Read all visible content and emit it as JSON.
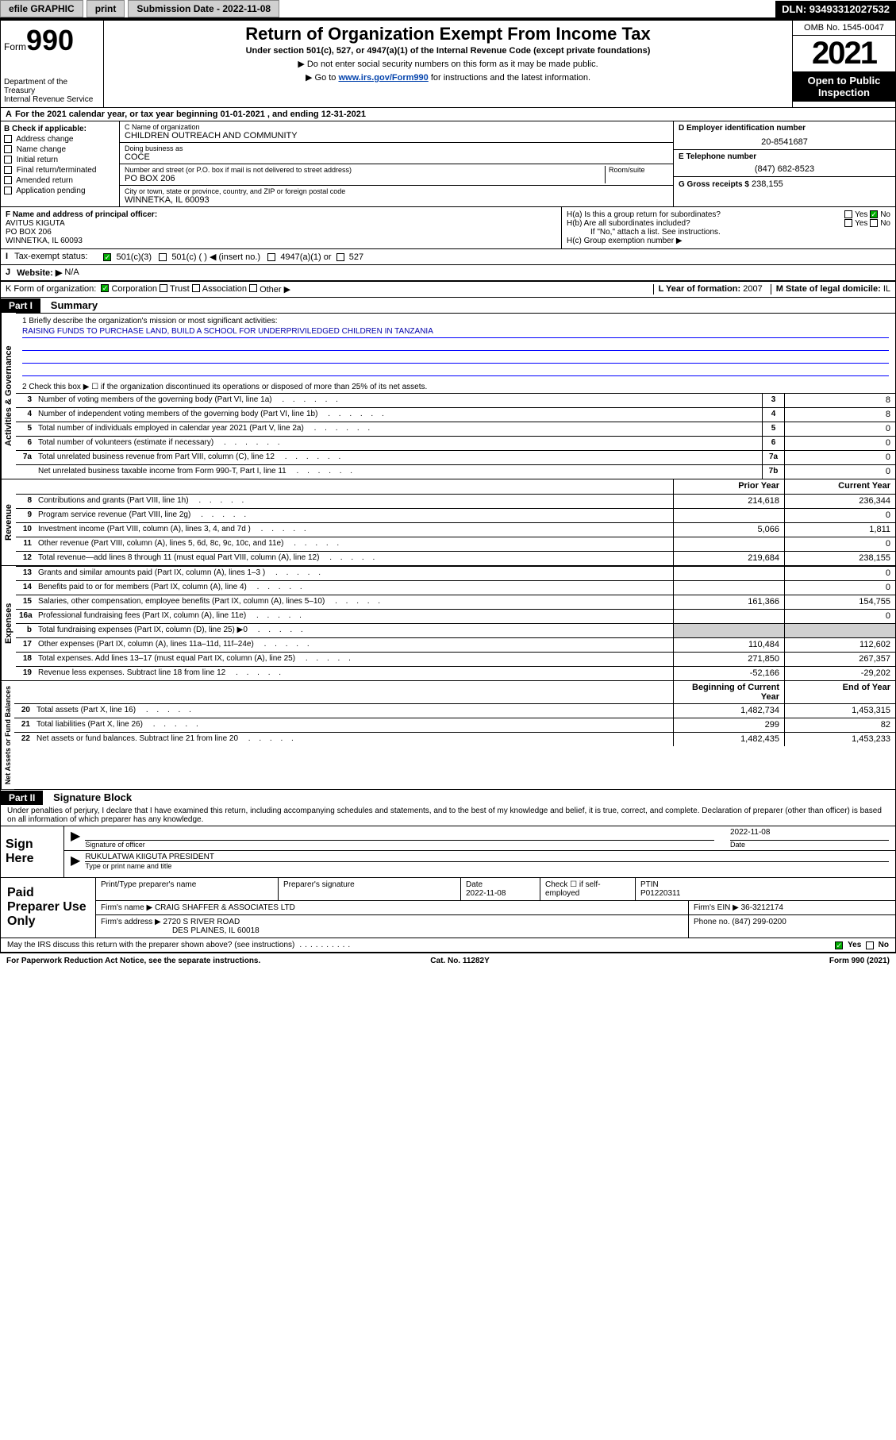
{
  "topbar": {
    "efile": "efile GRAPHIC",
    "print": "print",
    "subdate_label": "Submission Date - 2022-11-08",
    "dln": "DLN: 93493312027532"
  },
  "header": {
    "form": "Form",
    "formnum": "990",
    "dept": "Department of the Treasury\nInternal Revenue Service",
    "title": "Return of Organization Exempt From Income Tax",
    "sub": "Under section 501(c), 527, or 4947(a)(1) of the Internal Revenue Code (except private foundations)",
    "note1": "▶ Do not enter social security numbers on this form as it may be made public.",
    "note2_pre": "▶ Go to ",
    "note2_link": "www.irs.gov/Form990",
    "note2_post": " for instructions and the latest information.",
    "omb": "OMB No. 1545-0047",
    "year": "2021",
    "inspect": "Open to Public Inspection"
  },
  "yearline": "For the 2021 calendar year, or tax year beginning 01-01-2021   , and ending 12-31-2021",
  "sectB": {
    "hdr": "B Check if applicable:",
    "items": [
      "Address change",
      "Name change",
      "Initial return",
      "Final return/terminated",
      "Amended return",
      "Application pending"
    ]
  },
  "org": {
    "name_label": "C Name of organization",
    "name": "CHILDREN OUTREACH AND COMMUNITY",
    "dba_label": "Doing business as",
    "dba": "COCE",
    "addr_label": "Number and street (or P.O. box if mail is not delivered to street address)",
    "room_label": "Room/suite",
    "addr": "PO BOX 206",
    "city_label": "City or town, state or province, country, and ZIP or foreign postal code",
    "city": "WINNETKA, IL  60093"
  },
  "right": {
    "ein_label": "D Employer identification number",
    "ein": "20-8541687",
    "phone_label": "E Telephone number",
    "phone": "(847) 682-8523",
    "gross_label": "G Gross receipts $",
    "gross": "238,155"
  },
  "f": {
    "label": "F  Name and address of principal officer:",
    "name": "AVITUS KIGUTA",
    "addr1": "PO BOX 206",
    "addr2": "WINNETKA, IL  60093"
  },
  "h": {
    "a": "H(a)  Is this a group return for subordinates?",
    "b": "H(b)  Are all subordinates included?",
    "note": "If \"No,\" attach a list. See instructions.",
    "c": "H(c)  Group exemption number ▶",
    "yes": "Yes",
    "no": "No"
  },
  "i": {
    "label": "Tax-exempt status:",
    "opts": [
      "501(c)(3)",
      "501(c) (  ) ◀ (insert no.)",
      "4947(a)(1) or",
      "527"
    ]
  },
  "j": {
    "label": "Website: ▶",
    "val": "N/A"
  },
  "k": {
    "label": "K Form of organization:",
    "opts": [
      "Corporation",
      "Trust",
      "Association",
      "Other ▶"
    ]
  },
  "l": {
    "label": "L Year of formation:",
    "val": "2007"
  },
  "m": {
    "label": "M State of legal domicile:",
    "val": "IL"
  },
  "part1": {
    "num": "Part I",
    "title": "Summary"
  },
  "mission": {
    "label": "1   Briefly describe the organization's mission or most significant activities:",
    "text": "RAISING FUNDS TO PURCHASE LAND, BUILD A SCHOOL FOR UNDERPRIVILEDGED CHILDREN IN TANZANIA"
  },
  "line2": "2   Check this box ▶ ☐  if the organization discontinued its operations or disposed of more than 25% of its net assets.",
  "tabs": {
    "gov": "Activities & Governance",
    "rev": "Revenue",
    "exp": "Expenses",
    "net": "Net Assets or Fund Balances"
  },
  "gov_rows": [
    {
      "n": "3",
      "d": "Number of voting members of the governing body (Part VI, line 1a)",
      "box": "3",
      "v": "8"
    },
    {
      "n": "4",
      "d": "Number of independent voting members of the governing body (Part VI, line 1b)",
      "box": "4",
      "v": "8"
    },
    {
      "n": "5",
      "d": "Total number of individuals employed in calendar year 2021 (Part V, line 2a)",
      "box": "5",
      "v": "0"
    },
    {
      "n": "6",
      "d": "Total number of volunteers (estimate if necessary)",
      "box": "6",
      "v": "0"
    },
    {
      "n": "7a",
      "d": "Total unrelated business revenue from Part VIII, column (C), line 12",
      "box": "7a",
      "v": "0"
    },
    {
      "n": "",
      "d": "Net unrelated business taxable income from Form 990-T, Part I, line 11",
      "box": "7b",
      "v": "0"
    }
  ],
  "twocol_hdr": {
    "prior": "Prior Year",
    "curr": "Current Year"
  },
  "rev_rows": [
    {
      "n": "8",
      "d": "Contributions and grants (Part VIII, line 1h)",
      "p": "214,618",
      "c": "236,344"
    },
    {
      "n": "9",
      "d": "Program service revenue (Part VIII, line 2g)",
      "p": "",
      "c": "0"
    },
    {
      "n": "10",
      "d": "Investment income (Part VIII, column (A), lines 3, 4, and 7d )",
      "p": "5,066",
      "c": "1,811"
    },
    {
      "n": "11",
      "d": "Other revenue (Part VIII, column (A), lines 5, 6d, 8c, 9c, 10c, and 11e)",
      "p": "",
      "c": "0"
    },
    {
      "n": "12",
      "d": "Total revenue—add lines 8 through 11 (must equal Part VIII, column (A), line 12)",
      "p": "219,684",
      "c": "238,155"
    }
  ],
  "exp_rows": [
    {
      "n": "13",
      "d": "Grants and similar amounts paid (Part IX, column (A), lines 1–3 )",
      "p": "",
      "c": "0"
    },
    {
      "n": "14",
      "d": "Benefits paid to or for members (Part IX, column (A), line 4)",
      "p": "",
      "c": "0"
    },
    {
      "n": "15",
      "d": "Salaries, other compensation, employee benefits (Part IX, column (A), lines 5–10)",
      "p": "161,366",
      "c": "154,755"
    },
    {
      "n": "16a",
      "d": "Professional fundraising fees (Part IX, column (A), line 11e)",
      "p": "",
      "c": "0"
    },
    {
      "n": "b",
      "d": "Total fundraising expenses (Part IX, column (D), line 25) ▶0",
      "p": "shade",
      "c": "shade"
    },
    {
      "n": "17",
      "d": "Other expenses (Part IX, column (A), lines 11a–11d, 11f–24e)",
      "p": "110,484",
      "c": "112,602"
    },
    {
      "n": "18",
      "d": "Total expenses. Add lines 13–17 (must equal Part IX, column (A), line 25)",
      "p": "271,850",
      "c": "267,357"
    },
    {
      "n": "19",
      "d": "Revenue less expenses. Subtract line 18 from line 12",
      "p": "-52,166",
      "c": "-29,202"
    }
  ],
  "net_hdr": {
    "beg": "Beginning of Current Year",
    "end": "End of Year"
  },
  "net_rows": [
    {
      "n": "20",
      "d": "Total assets (Part X, line 16)",
      "p": "1,482,734",
      "c": "1,453,315"
    },
    {
      "n": "21",
      "d": "Total liabilities (Part X, line 26)",
      "p": "299",
      "c": "82"
    },
    {
      "n": "22",
      "d": "Net assets or fund balances. Subtract line 21 from line 20",
      "p": "1,482,435",
      "c": "1,453,233"
    }
  ],
  "part2": {
    "num": "Part II",
    "title": "Signature Block"
  },
  "decl": "Under penalties of perjury, I declare that I have examined this return, including accompanying schedules and statements, and to the best of my knowledge and belief, it is true, correct, and complete. Declaration of preparer (other than officer) is based on all information of which preparer has any knowledge.",
  "sign": {
    "here": "Sign Here",
    "sig_label": "Signature of officer",
    "date": "2022-11-08",
    "date_label": "Date",
    "name": "RUKULATWA KIIGUTA  PRESIDENT",
    "name_label": "Type or print name and title"
  },
  "paid": {
    "title": "Paid Preparer Use Only",
    "h1": "Print/Type preparer's name",
    "h2": "Preparer's signature",
    "h3": "Date",
    "h4": "Check ☐ if self-employed",
    "h5": "PTIN",
    "date": "2022-11-08",
    "ptin": "P01220311",
    "firm_label": "Firm's name      ▶",
    "firm": "CRAIG SHAFFER & ASSOCIATES LTD",
    "ein_label": "Firm's EIN ▶",
    "ein": "36-3212174",
    "addr_label": "Firm's address ▶",
    "addr": "2720 S RIVER ROAD",
    "city": "DES PLAINES, IL  60018",
    "phone_label": "Phone no.",
    "phone": "(847) 299-0200"
  },
  "discuss": "May the IRS discuss this return with the preparer shown above? (see instructions)",
  "footer": {
    "pra": "For Paperwork Reduction Act Notice, see the separate instructions.",
    "cat": "Cat. No. 11282Y",
    "form": "Form 990 (2021)"
  }
}
